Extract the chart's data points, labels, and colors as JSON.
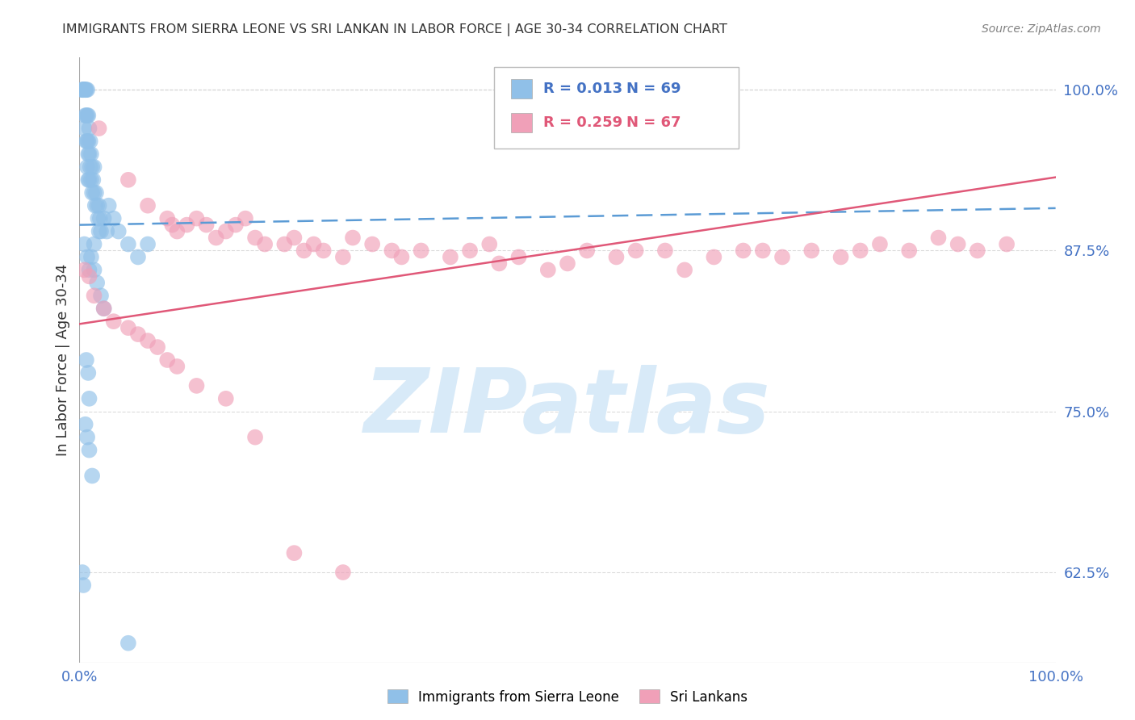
{
  "title": "IMMIGRANTS FROM SIERRA LEONE VS SRI LANKAN IN LABOR FORCE | AGE 30-34 CORRELATION CHART",
  "source": "Source: ZipAtlas.com",
  "ylabel": "In Labor Force | Age 30-34",
  "xlim": [
    0.0,
    1.0
  ],
  "ylim": [
    0.555,
    1.025
  ],
  "yticks": [
    0.625,
    0.75,
    0.875,
    1.0
  ],
  "ytick_labels": [
    "62.5%",
    "75.0%",
    "87.5%",
    "100.0%"
  ],
  "blue_color": "#90C0E8",
  "pink_color": "#F0A0B8",
  "blue_line_color": "#5B9BD5",
  "pink_line_color": "#E05878",
  "watermark": "ZIPatlas",
  "watermark_color": "#D8EAF8",
  "blue_scatter_x": [
    0.003,
    0.003,
    0.004,
    0.004,
    0.004,
    0.005,
    0.005,
    0.005,
    0.006,
    0.006,
    0.006,
    0.007,
    0.007,
    0.007,
    0.008,
    0.008,
    0.008,
    0.008,
    0.009,
    0.009,
    0.009,
    0.009,
    0.01,
    0.01,
    0.01,
    0.011,
    0.011,
    0.012,
    0.012,
    0.013,
    0.013,
    0.014,
    0.015,
    0.015,
    0.016,
    0.017,
    0.018,
    0.019,
    0.02,
    0.021,
    0.022,
    0.025,
    0.028,
    0.03,
    0.035,
    0.04,
    0.05,
    0.06,
    0.07,
    0.015,
    0.02,
    0.005,
    0.008,
    0.01,
    0.012,
    0.015,
    0.018,
    0.022,
    0.025,
    0.007,
    0.009,
    0.01,
    0.006,
    0.008,
    0.01,
    0.013,
    0.003,
    0.004,
    0.05
  ],
  "blue_scatter_y": [
    1.0,
    1.0,
    1.0,
    1.0,
    1.0,
    1.0,
    1.0,
    0.97,
    1.0,
    1.0,
    0.98,
    1.0,
    0.98,
    0.96,
    1.0,
    0.98,
    0.96,
    0.94,
    0.98,
    0.96,
    0.95,
    0.93,
    0.97,
    0.95,
    0.93,
    0.96,
    0.94,
    0.95,
    0.93,
    0.94,
    0.92,
    0.93,
    0.94,
    0.92,
    0.91,
    0.92,
    0.91,
    0.9,
    0.91,
    0.9,
    0.89,
    0.9,
    0.89,
    0.91,
    0.9,
    0.89,
    0.88,
    0.87,
    0.88,
    0.88,
    0.89,
    0.88,
    0.87,
    0.86,
    0.87,
    0.86,
    0.85,
    0.84,
    0.83,
    0.79,
    0.78,
    0.76,
    0.74,
    0.73,
    0.72,
    0.7,
    0.625,
    0.615,
    0.57
  ],
  "pink_scatter_x": [
    0.02,
    0.05,
    0.07,
    0.09,
    0.095,
    0.1,
    0.11,
    0.12,
    0.13,
    0.14,
    0.15,
    0.16,
    0.17,
    0.18,
    0.19,
    0.21,
    0.22,
    0.23,
    0.24,
    0.25,
    0.27,
    0.28,
    0.3,
    0.32,
    0.33,
    0.35,
    0.38,
    0.4,
    0.42,
    0.43,
    0.45,
    0.48,
    0.5,
    0.52,
    0.55,
    0.57,
    0.6,
    0.62,
    0.65,
    0.68,
    0.7,
    0.72,
    0.75,
    0.78,
    0.8,
    0.82,
    0.85,
    0.88,
    0.9,
    0.92,
    0.95,
    0.005,
    0.01,
    0.015,
    0.025,
    0.035,
    0.05,
    0.06,
    0.07,
    0.08,
    0.09,
    0.1,
    0.12,
    0.15,
    0.18,
    0.22,
    0.27
  ],
  "pink_scatter_y": [
    0.97,
    0.93,
    0.91,
    0.9,
    0.895,
    0.89,
    0.895,
    0.9,
    0.895,
    0.885,
    0.89,
    0.895,
    0.9,
    0.885,
    0.88,
    0.88,
    0.885,
    0.875,
    0.88,
    0.875,
    0.87,
    0.885,
    0.88,
    0.875,
    0.87,
    0.875,
    0.87,
    0.875,
    0.88,
    0.865,
    0.87,
    0.86,
    0.865,
    0.875,
    0.87,
    0.875,
    0.875,
    0.86,
    0.87,
    0.875,
    0.875,
    0.87,
    0.875,
    0.87,
    0.875,
    0.88,
    0.875,
    0.885,
    0.88,
    0.875,
    0.88,
    0.86,
    0.855,
    0.84,
    0.83,
    0.82,
    0.815,
    0.81,
    0.805,
    0.8,
    0.79,
    0.785,
    0.77,
    0.76,
    0.73,
    0.64,
    0.625
  ],
  "blue_line_y_start": 0.895,
  "blue_line_y_end": 0.908,
  "pink_line_y_start": 0.818,
  "pink_line_y_end": 0.932,
  "background_color": "#FFFFFF",
  "grid_color": "#CCCCCC",
  "tick_color": "#4472C4",
  "title_color": "#333333",
  "source_color": "#808080",
  "legend_blue_r": "R = 0.013",
  "legend_blue_n": "N = 69",
  "legend_pink_r": "R = 0.259",
  "legend_pink_n": "N = 67",
  "legend_blue_color": "#4472C4",
  "legend_pink_color": "#E05878"
}
